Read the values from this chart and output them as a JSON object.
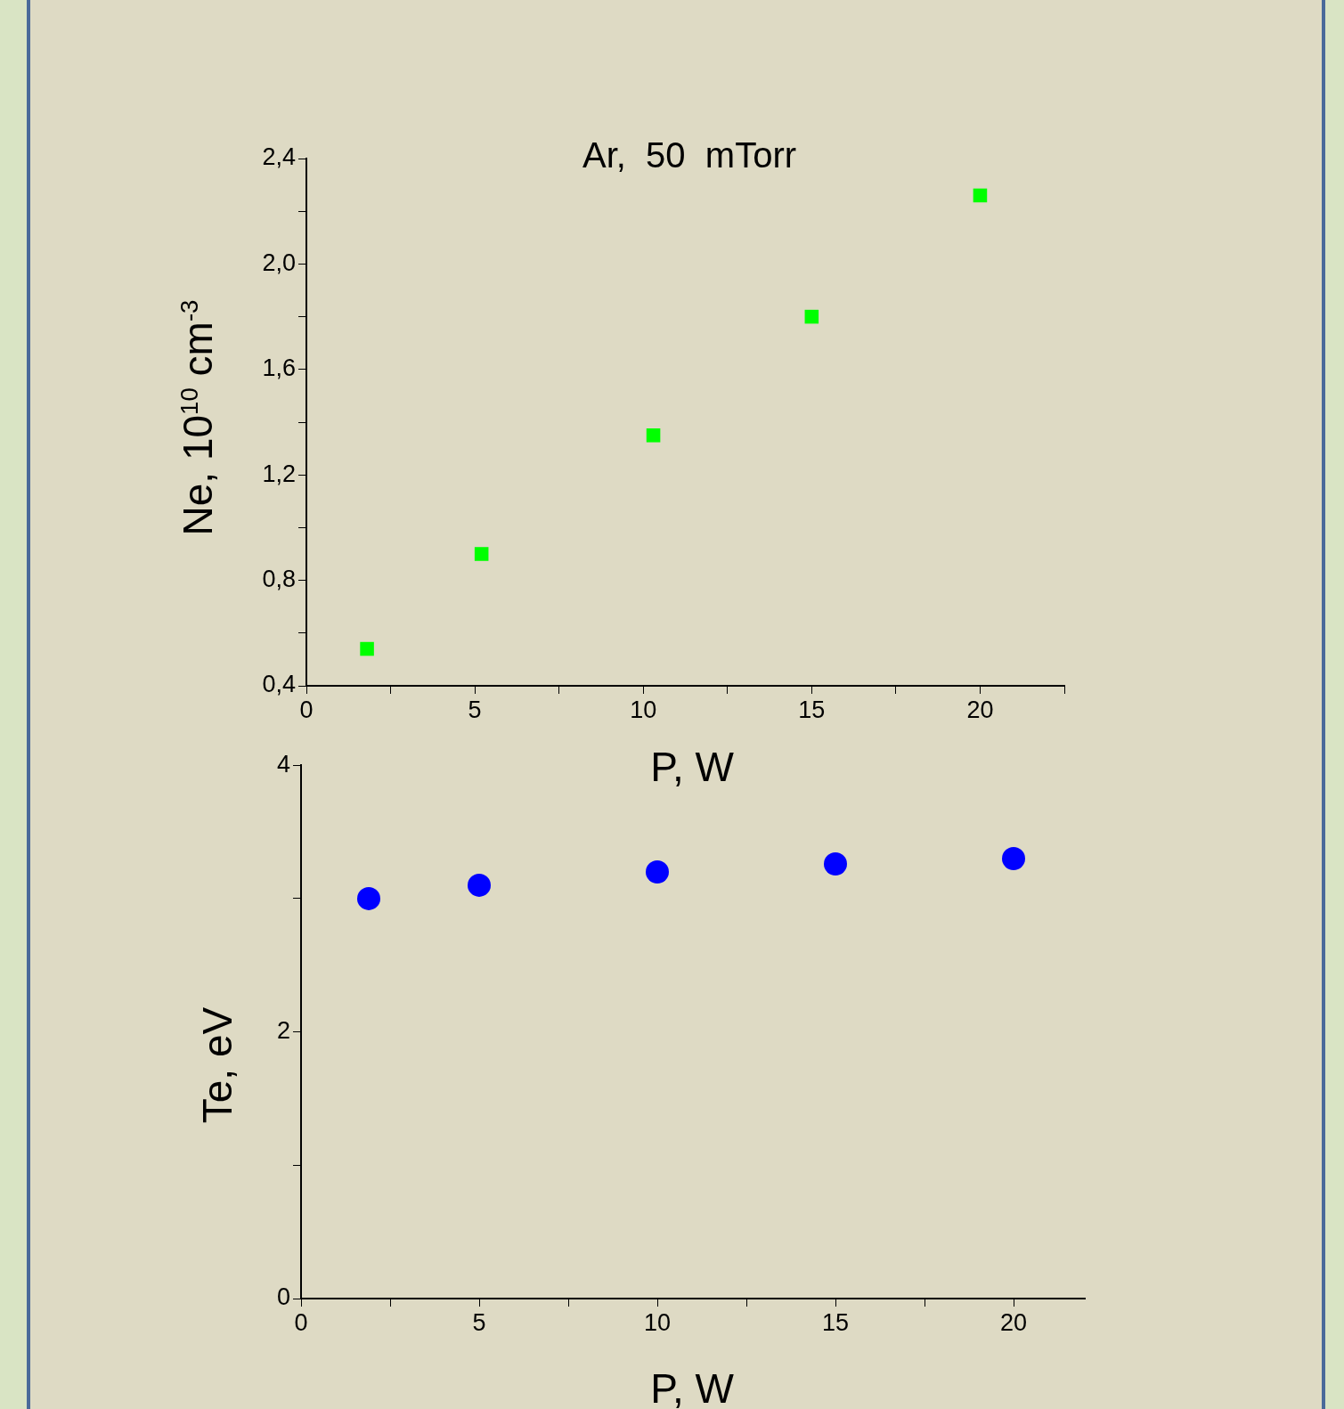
{
  "chart_data": [
    {
      "type": "scatter",
      "title": "Ar,  50  mTorr",
      "xlabel": "P, W",
      "ylabel": "Ne, 10$^{10}$ cm$^{-3}$",
      "marker": "square",
      "x": [
        1.8,
        5.2,
        10.3,
        15.0,
        20.0
      ],
      "series": [
        {
          "color": "#00ff00",
          "values": [
            0.54,
            0.9,
            1.35,
            1.8,
            2.26
          ]
        }
      ],
      "xlim": [
        0,
        22.5
      ],
      "xticks": [
        0,
        {
          "value": 2.5,
          "label": null
        },
        5,
        {
          "value": 7.5,
          "label": null
        },
        10,
        {
          "value": 12.5,
          "label": null
        },
        15,
        {
          "value": 17.5,
          "label": null
        },
        20,
        {
          "value": 22.5,
          "label": null
        }
      ],
      "ylim": [
        0.4,
        2.4
      ],
      "yticks": [
        {
          "value": 0.4,
          "label": "0,4"
        },
        {
          "value": 0.6,
          "label": null
        },
        {
          "value": 0.8,
          "label": "0,8"
        },
        {
          "value": 1.0,
          "label": null
        },
        {
          "value": 1.2,
          "label": "1,2"
        },
        {
          "value": 1.4,
          "label": null
        },
        {
          "value": 1.6,
          "label": "1,6"
        },
        {
          "value": 1.8,
          "label": null
        },
        {
          "value": 2.0,
          "label": "2,0"
        },
        {
          "value": 2.2,
          "label": null
        },
        {
          "value": 2.4,
          "label": "2,4"
        }
      ]
    },
    {
      "type": "scatter",
      "xlabel": "P, W",
      "ylabel": "Te, eV",
      "marker": "circle",
      "x": [
        1.9,
        5.0,
        10.0,
        15.0,
        20.0
      ],
      "series": [
        {
          "color": "#0000ff",
          "values": [
            3.0,
            3.1,
            3.2,
            3.26,
            3.3
          ]
        }
      ],
      "xlim": [
        0,
        22
      ],
      "xticks": [
        0,
        {
          "value": 2.5,
          "label": null
        },
        5,
        {
          "value": 7.5,
          "label": null
        },
        10,
        {
          "value": 12.5,
          "label": null
        },
        15,
        {
          "value": 17.5,
          "label": null
        },
        20
      ],
      "ylim": [
        0,
        4
      ],
      "yticks": [
        0,
        {
          "value": 1,
          "label": null
        },
        2,
        {
          "value": 3,
          "label": null
        },
        4
      ]
    }
  ]
}
